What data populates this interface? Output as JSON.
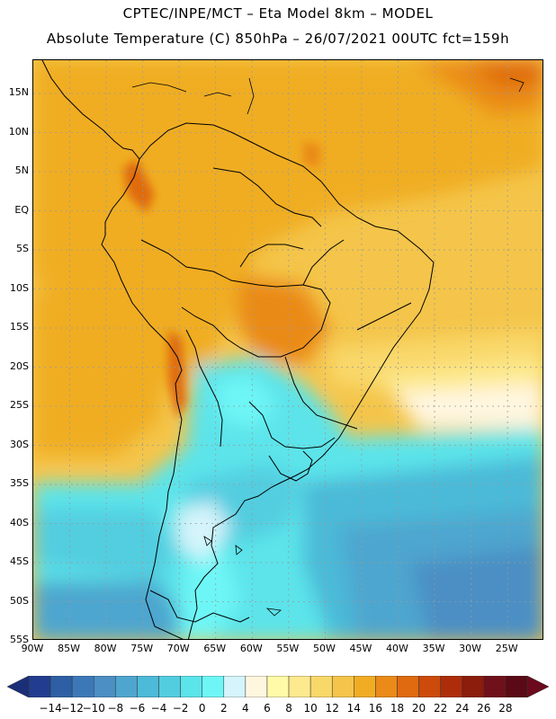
{
  "header": {
    "title_line1": "CPTEC/INPE/MCT –  Eta Model 8km – MODEL",
    "title_line2": "Absolute Temperature (C) 850hPa – 26/07/2021 00UTC fct=159h"
  },
  "map": {
    "lat_labels": [
      "15N",
      "10N",
      "5N",
      "EQ",
      "5S",
      "10S",
      "15S",
      "20S",
      "25S",
      "30S",
      "35S",
      "40S",
      "45S",
      "50S",
      "55S"
    ],
    "lon_labels": [
      "90W",
      "85W",
      "80W",
      "75W",
      "70W",
      "65W",
      "60W",
      "55W",
      "50W",
      "45W",
      "40W",
      "35W",
      "30W",
      "25W"
    ]
  },
  "colorbar": {
    "labels": [
      "-14",
      "-12",
      "-10",
      "-8",
      "-6",
      "-4",
      "-2",
      "0",
      "2",
      "4",
      "6",
      "8",
      "10",
      "12",
      "14",
      "16",
      "18",
      "20",
      "22",
      "24",
      "26",
      "28"
    ],
    "colors": [
      "#223d8f",
      "#2e5fa5",
      "#3c78b8",
      "#4b8fc4",
      "#4ea6cf",
      "#4cbad8",
      "#52cde0",
      "#5be4ea",
      "#6ef6f6",
      "#d5f4fb",
      "#fff6e0",
      "#fffaa8",
      "#fde98e",
      "#f9d86a",
      "#f4c54a",
      "#f0ad24",
      "#ea8a18",
      "#df6a10",
      "#cc4a0c",
      "#ad2d0a",
      "#8c1c0c",
      "#70101a",
      "#5a0a14"
    ],
    "left_arrow_color": "#1a2f78",
    "right_arrow_color": "#6b0a1c"
  }
}
